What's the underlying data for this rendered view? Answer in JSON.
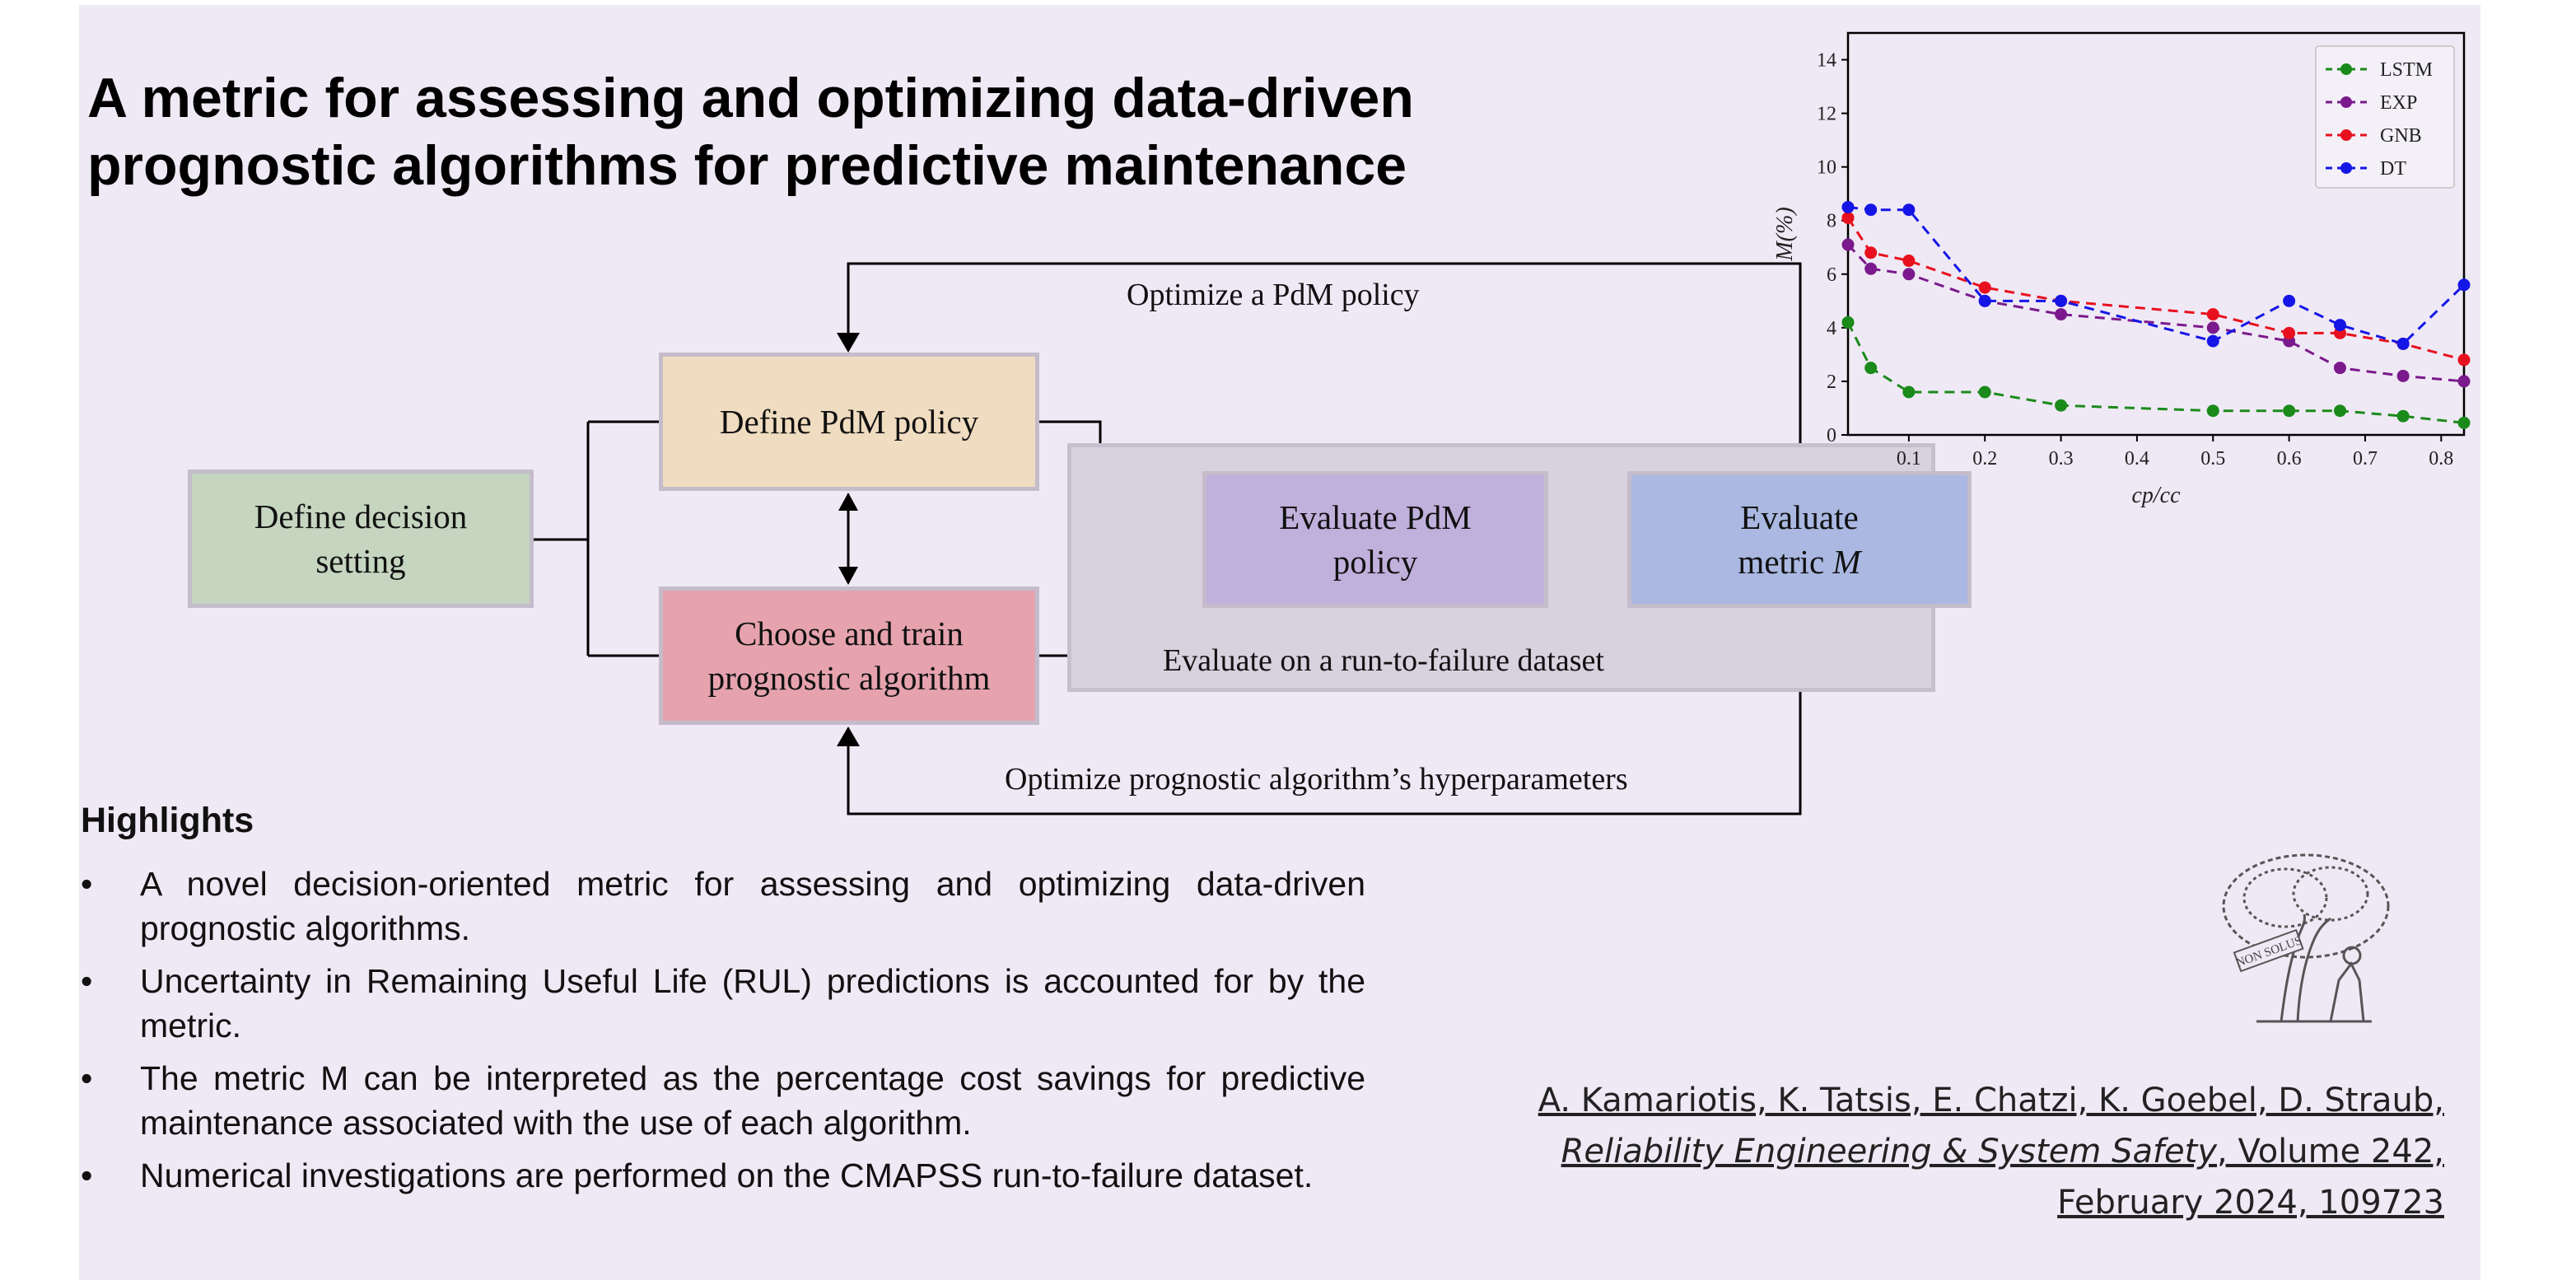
{
  "title": {
    "line1": "A metric for assessing and optimizing data-driven",
    "line2": "prognostic algorithms for predictive maintenance"
  },
  "diagram": {
    "define_decision_setting": [
      "Define decision",
      "setting"
    ],
    "define_pdm_policy": "Define PdM policy",
    "choose_train": [
      "Choose and train",
      "prognostic algorithm"
    ],
    "evaluate_pdm_policy": [
      "Evaluate PdM",
      "policy"
    ],
    "evaluate_metric": [
      "Evaluate",
      "metric"
    ],
    "metric_symbol": "M",
    "panel_label": "Evaluate on a run-to-failure  dataset",
    "optimize_policy": "Optimize a PdM policy",
    "optimize_hyper": "Optimize prognostic algorithm’s hyperparameters"
  },
  "highlights": {
    "title": "Highlights",
    "bullet_char": "•",
    "items": [
      "A novel decision-oriented metric for assessing and optimizing data-driven prognostic algorithms.",
      "Uncertainty in Remaining Useful Life (RUL) predictions is accounted for by the metric.",
      "The metric M can be interpreted as the percentage cost savings for predictive maintenance associated with the use of each algorithm.",
      "Numerical investigations are performed on the CMAPSS run-to-failure dataset."
    ]
  },
  "citation": {
    "authors": "A. Kamariotis, K. Tatsis, E. Chatzi, K. Goebel, D. Straub,",
    "journal": "Reliability Engineering & System Safety",
    "volume": ", Volume 242,",
    "date": "February 2024, 109723"
  },
  "logo": {
    "banner_text": "NON SOLUS"
  },
  "colors": {
    "define_decision": "#c5d5c0",
    "define_pdm": "#f0dcc0",
    "choose_train": "#e6a3ae",
    "evaluate_policy": "#c0b0dc",
    "evaluate_metric": "#aab8e2",
    "panel": "#d8d1de",
    "background": "#efe9f5"
  },
  "chart_data": {
    "type": "line",
    "xlabel": "c_p/c_c",
    "ylabel": "M(%)",
    "xlim": [
      0.02,
      0.83
    ],
    "ylim": [
      0,
      15
    ],
    "xticks": [
      0.1,
      0.2,
      0.3,
      0.4,
      0.5,
      0.6,
      0.7,
      0.8
    ],
    "yticks": [
      0,
      2,
      4,
      6,
      8,
      10,
      12,
      14
    ],
    "legend_position": "top-right",
    "series": [
      {
        "name": "LSTM",
        "color": "#1a8a1a",
        "x": [
          0.02,
          0.05,
          0.1,
          0.2,
          0.3,
          0.5,
          0.6,
          0.667,
          0.75,
          0.83
        ],
        "y": [
          4.2,
          2.5,
          1.6,
          1.6,
          1.1,
          0.9,
          0.9,
          0.9,
          0.7,
          0.45
        ]
      },
      {
        "name": "EXP",
        "color": "#7b1a8c",
        "x": [
          0.02,
          0.05,
          0.1,
          0.2,
          0.3,
          0.5,
          0.6,
          0.667,
          0.75,
          0.83
        ],
        "y": [
          7.1,
          6.2,
          6.0,
          5.0,
          4.5,
          4.0,
          3.5,
          2.5,
          2.2,
          2.0
        ]
      },
      {
        "name": "GNB",
        "color": "#e8101e",
        "x": [
          0.02,
          0.05,
          0.1,
          0.2,
          0.3,
          0.5,
          0.6,
          0.667,
          0.75,
          0.83
        ],
        "y": [
          8.1,
          6.8,
          6.5,
          5.5,
          5.0,
          4.5,
          3.8,
          3.8,
          3.4,
          2.8
        ]
      },
      {
        "name": "DT",
        "color": "#1515e6",
        "x": [
          0.02,
          0.05,
          0.1,
          0.2,
          0.3,
          0.5,
          0.6,
          0.667,
          0.75,
          0.83
        ],
        "y": [
          8.5,
          8.4,
          8.4,
          5.0,
          5.0,
          3.5,
          5.0,
          4.1,
          3.4,
          5.6
        ]
      }
    ]
  }
}
